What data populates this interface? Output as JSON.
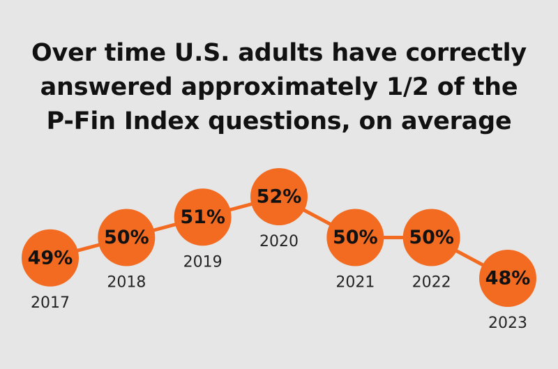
{
  "title_lines": [
    "Over time U.S. adults have correctly",
    "answered approximately 1/2 of the",
    "P-Fin Index questions, on average"
  ],
  "colors": {
    "background": "#e6e6e6",
    "marker": "#f26b21",
    "line": "#f26b21",
    "text": "#111111"
  },
  "chart_data": {
    "type": "line",
    "categories": [
      "2017",
      "2018",
      "2019",
      "2020",
      "2021",
      "2022",
      "2023"
    ],
    "values": [
      49,
      50,
      51,
      52,
      50,
      50,
      48
    ],
    "value_labels": [
      "49%",
      "50%",
      "51%",
      "52%",
      "50%",
      "50%",
      "48%"
    ],
    "marker": "large-circle",
    "ylim": [
      48,
      52
    ],
    "grid": false,
    "legend": "none"
  }
}
